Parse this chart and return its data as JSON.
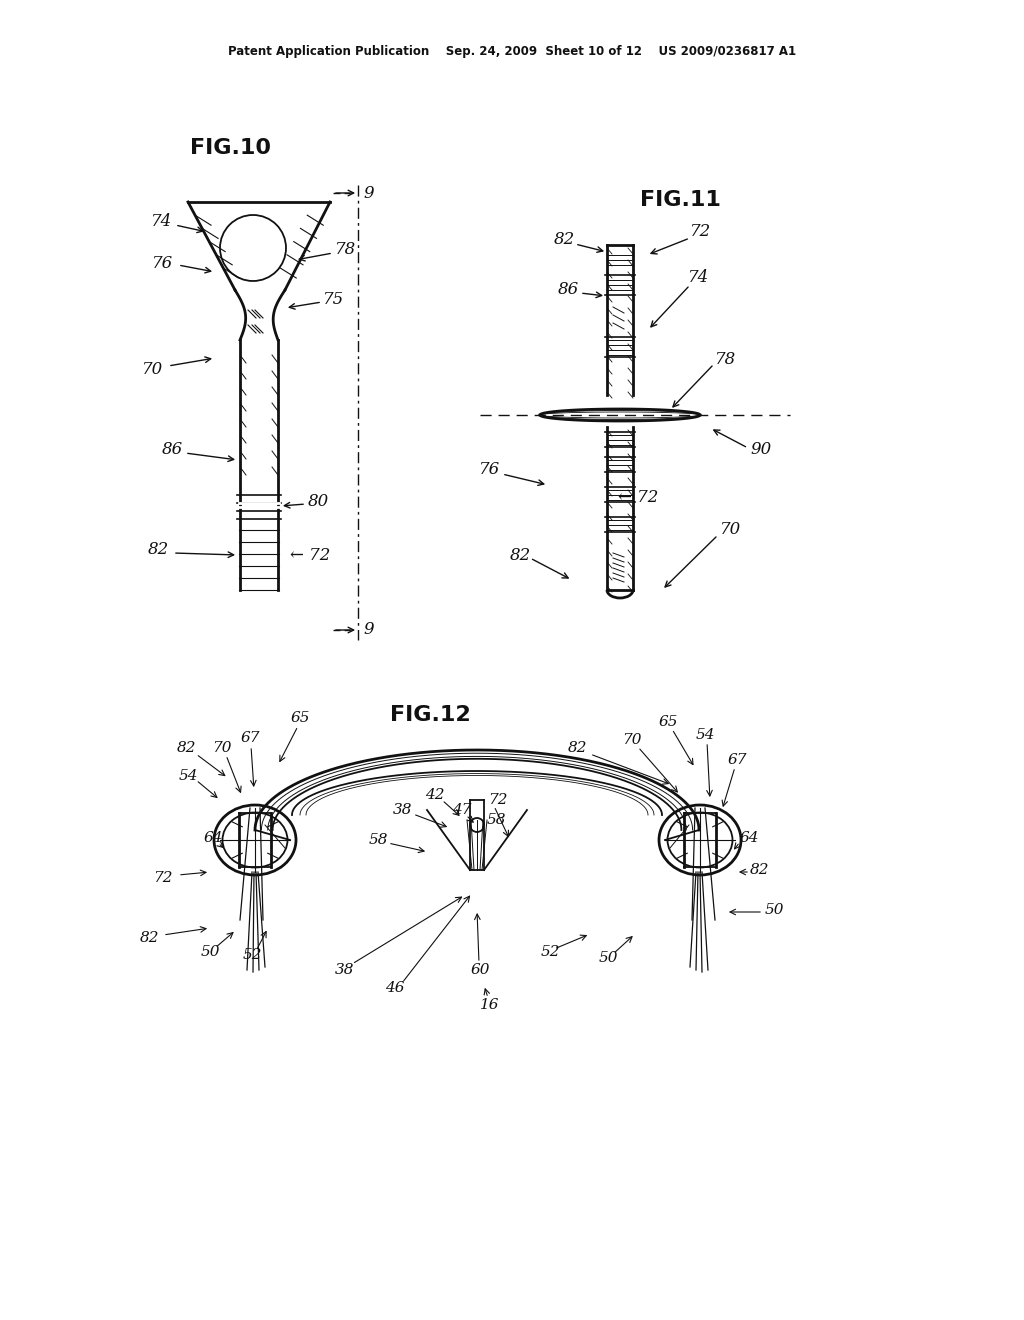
{
  "bg_color": "#ffffff",
  "header_text": "Patent Application Publication    Sep. 24, 2009  Sheet 10 of 12    US 2009/0236817 A1",
  "fig10_label": "FIG.10",
  "fig11_label": "FIG.11",
  "fig12_label": "FIG.12"
}
